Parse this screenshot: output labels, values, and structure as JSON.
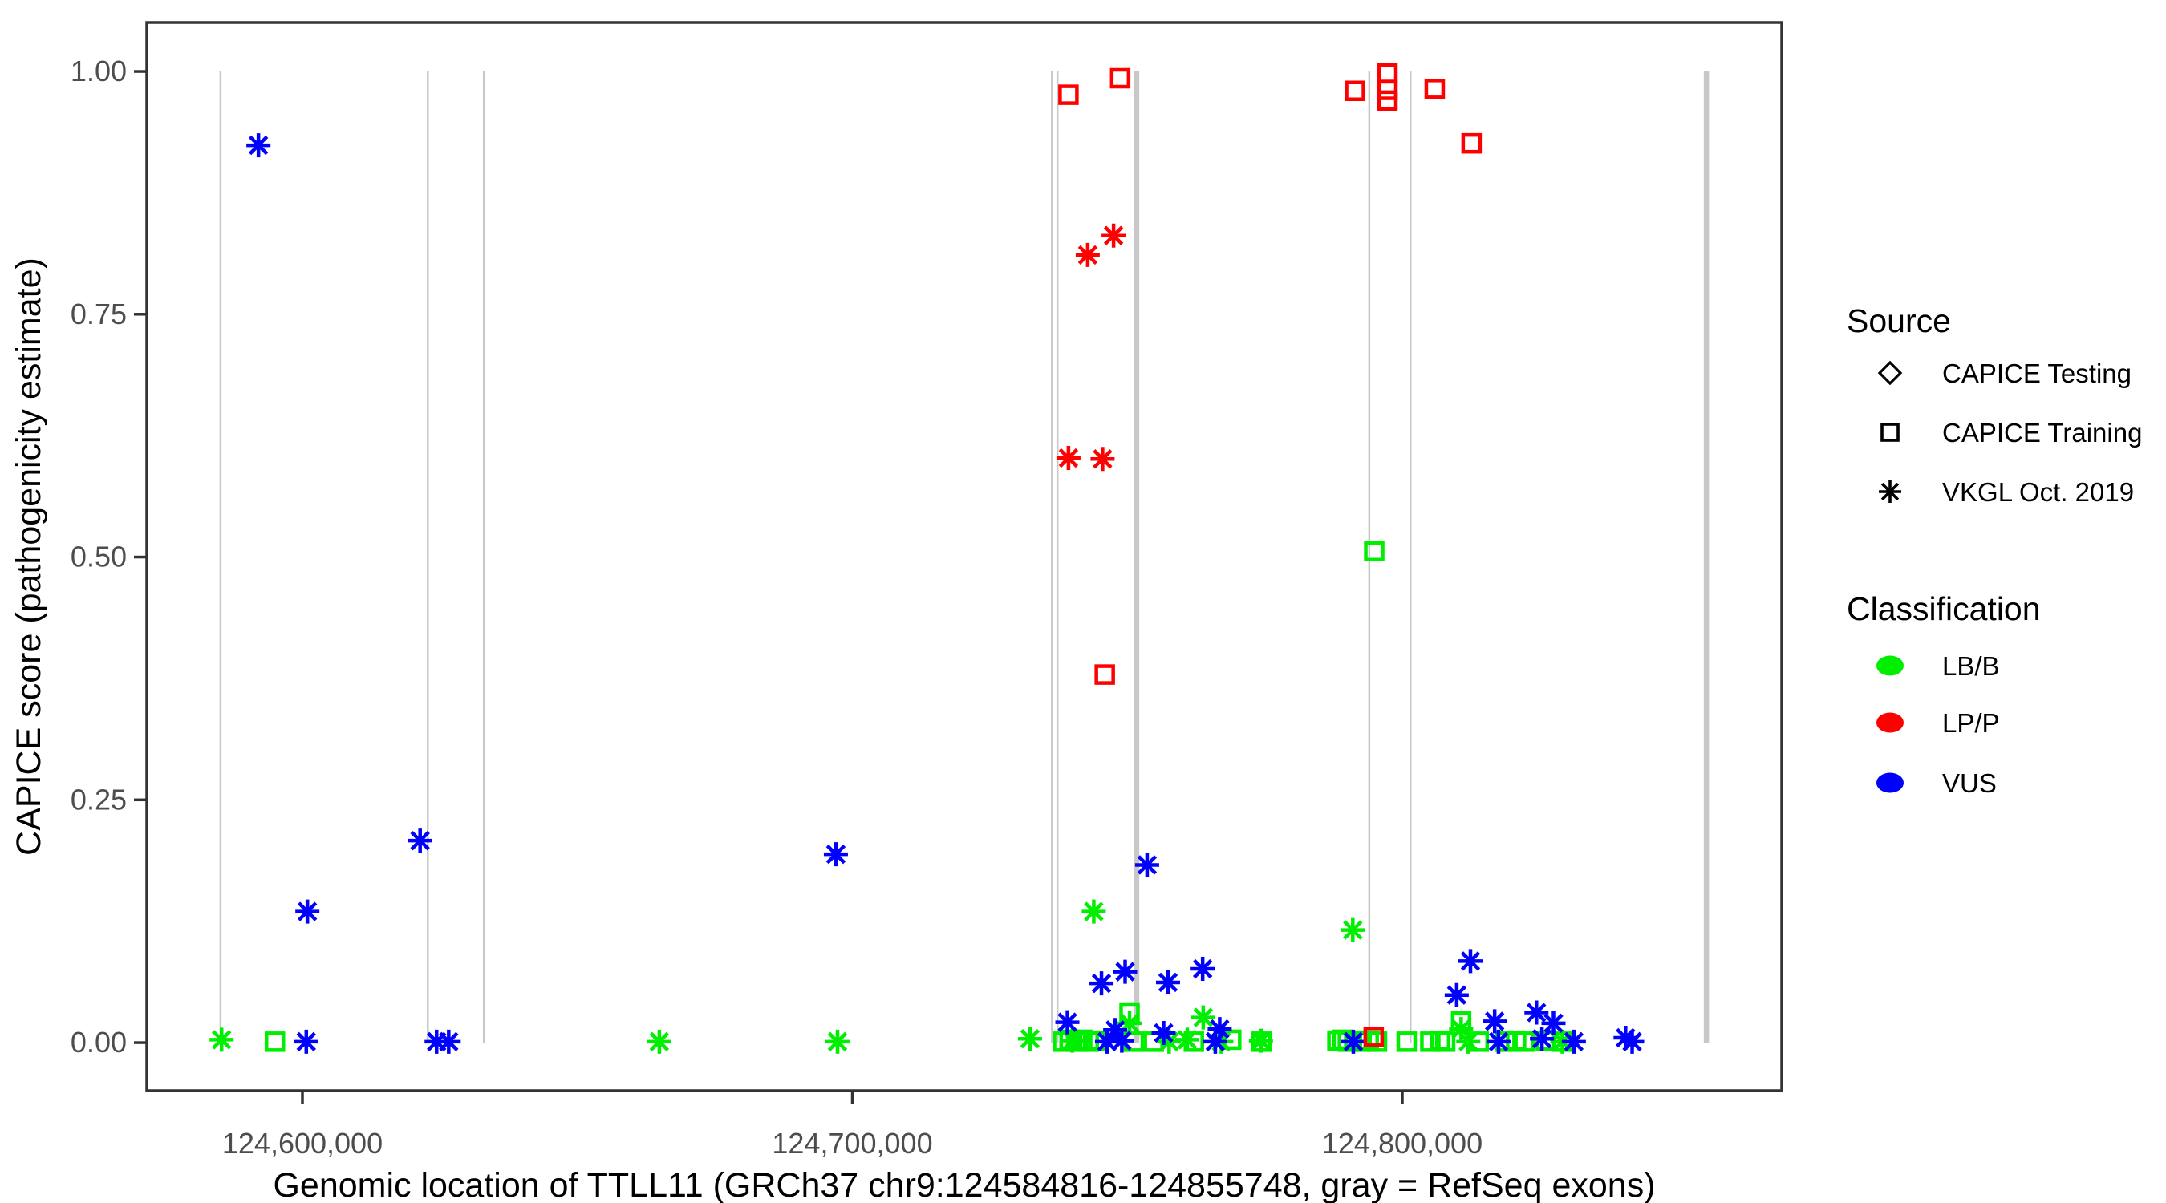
{
  "figure": {
    "x_axis": {
      "title": "Genomic location of TTLL11 (GRCh37 chr9:124584816-124855748, gray = RefSeq exons)",
      "tick_labels": [
        "124,600,000",
        "124,700,000",
        "124,800,000"
      ],
      "tick_values": [
        124600000,
        124700000,
        124800000
      ]
    },
    "y_axis": {
      "title": "CAPICE score (pathogenicity estimate)",
      "tick_labels": [
        "0.00",
        "0.25",
        "0.50",
        "0.75",
        "1.00"
      ],
      "tick_values": [
        0,
        0.25,
        0.5,
        0.75,
        1
      ]
    },
    "legend": {
      "source": {
        "title": "Source",
        "items": [
          {
            "label": "CAPICE Testing",
            "shape": "diamond"
          },
          {
            "label": "CAPICE Training",
            "shape": "square"
          },
          {
            "label": "VKGL Oct. 2019",
            "shape": "asterisk"
          }
        ]
      },
      "classification": {
        "title": "Classification",
        "items": [
          {
            "label": "LB/B",
            "color": "#00EE00"
          },
          {
            "label": "LP/P",
            "color": "#FF0000"
          },
          {
            "label": "VUS",
            "color": "#0000FF"
          }
        ]
      }
    },
    "colors": {
      "lb_b": "#00EE00",
      "lp_p": "#FF0000",
      "vus": "#0000FF",
      "exon_gray": "#C8C8C8",
      "axis_text": "#4d4d4d",
      "axis_line": "#333333",
      "background": "#ffffff"
    }
  },
  "chart_data": {
    "type": "scatter",
    "title": "",
    "xlabel": "Genomic location of TTLL11 (GRCh37 chr9:124584816-124855748, gray = RefSeq exons)",
    "ylabel": "CAPICE score (pathogenicity estimate)",
    "xlim": [
      124571700,
      124869000
    ],
    "ylim": [
      -0.0495,
      1.0504
    ],
    "grid": false,
    "legend_position": "right",
    "exons_note": "gray vertical segments span score 0 to 1 at RefSeq exon genomic positions",
    "exons": [
      {
        "bp": 124585100,
        "thick": false
      },
      {
        "bp": 124622800,
        "thick": false
      },
      {
        "bp": 124633000,
        "thick": false
      },
      {
        "bp": 124736300,
        "thick": false
      },
      {
        "bp": 124737300,
        "thick": false
      },
      {
        "bp": 124751700,
        "thick": true
      },
      {
        "bp": 124794000,
        "thick": false
      },
      {
        "bp": 124801500,
        "thick": false
      },
      {
        "bp": 124855300,
        "thick": true
      }
    ],
    "series": [
      {
        "name": "VKGL Oct. 2019 / LB/B",
        "source": "VKGL Oct. 2019",
        "classification": "LB/B",
        "shape": "asterisk",
        "color": "#00EE00",
        "points": [
          [
            124585300,
            0.003
          ],
          [
            124664900,
            0.001
          ],
          [
            124697300,
            0.001
          ],
          [
            124732300,
            0.004
          ],
          [
            124740000,
            0.002
          ],
          [
            124743900,
            0.135
          ],
          [
            124750400,
            0.02
          ],
          [
            124757600,
            0.001
          ],
          [
            124760900,
            0.003
          ],
          [
            124763800,
            0.026
          ],
          [
            124767100,
            0.001
          ],
          [
            124774300,
            0.002
          ],
          [
            124791000,
            0.116
          ],
          [
            124810700,
            0.014
          ],
          [
            124812000,
            0.001
          ],
          [
            124829100,
            0.001
          ]
        ]
      },
      {
        "name": "CAPICE Training / LB/B",
        "source": "CAPICE Training",
        "classification": "LB/B",
        "shape": "square",
        "color": "#00EE00",
        "points": [
          [
            124595000,
            0.001
          ],
          [
            124738300,
            0.001
          ],
          [
            124739500,
            0.003
          ],
          [
            124740700,
            0.001
          ],
          [
            124741800,
            0.003
          ],
          [
            124743000,
            0.001
          ],
          [
            124744200,
            0.002
          ],
          [
            124750400,
            0.031
          ],
          [
            124751200,
            0.001
          ],
          [
            124754800,
            0.001
          ],
          [
            124762100,
            0.001
          ],
          [
            124768900,
            0.003
          ],
          [
            124774400,
            0.001
          ],
          [
            124788200,
            0.002
          ],
          [
            124789100,
            0.003
          ],
          [
            124790100,
            0.001
          ],
          [
            124792600,
            0.001
          ],
          [
            124793900,
            0.002
          ],
          [
            124794900,
            0.506
          ],
          [
            124795400,
            0.001
          ],
          [
            124800800,
            0.001
          ],
          [
            124805100,
            0.001
          ],
          [
            124806900,
            0.002
          ],
          [
            124807800,
            0.001
          ],
          [
            124810700,
            0.022
          ],
          [
            124813900,
            0.001
          ],
          [
            124818800,
            0.001
          ],
          [
            124820700,
            0.002
          ],
          [
            124822200,
            0.001
          ],
          [
            124826100,
            0.002
          ],
          [
            124829100,
            0.001
          ]
        ]
      },
      {
        "name": "VKGL Oct. 2019 / VUS",
        "source": "VKGL Oct. 2019",
        "classification": "VUS",
        "shape": "asterisk",
        "color": "#0000FF",
        "points": [
          [
            124592000,
            0.924
          ],
          [
            124600700,
            0.001
          ],
          [
            124600900,
            0.135
          ],
          [
            124621400,
            0.208
          ],
          [
            124624400,
            0.001
          ],
          [
            124626600,
            0.001
          ],
          [
            124697000,
            0.194
          ],
          [
            124739100,
            0.021
          ],
          [
            124745300,
            0.061
          ],
          [
            124746300,
            0.001
          ],
          [
            124747800,
            0.013
          ],
          [
            124749000,
            0.002
          ],
          [
            124749600,
            0.073
          ],
          [
            124753600,
            0.183
          ],
          [
            124756600,
            0.01
          ],
          [
            124757400,
            0.062
          ],
          [
            124763700,
            0.076
          ],
          [
            124766000,
            0.001
          ],
          [
            124766800,
            0.014
          ],
          [
            124791100,
            0.001
          ],
          [
            124809900,
            0.049
          ],
          [
            124812400,
            0.084
          ],
          [
            124816800,
            0.022
          ],
          [
            124817500,
            0.001
          ],
          [
            124824400,
            0.031
          ],
          [
            124825400,
            0.004
          ],
          [
            124827500,
            0.02
          ],
          [
            124831200,
            0.001
          ],
          [
            124840600,
            0.005
          ],
          [
            124841800,
            0.001
          ]
        ]
      },
      {
        "name": "VKGL Oct. 2019 / LP/P",
        "source": "VKGL Oct. 2019",
        "classification": "LP/P",
        "shape": "asterisk",
        "color": "#FF0000",
        "points": [
          [
            124739300,
            0.602
          ],
          [
            124742800,
            0.811
          ],
          [
            124745500,
            0.601
          ],
          [
            124747500,
            0.831
          ]
        ]
      },
      {
        "name": "CAPICE Training / LP/P",
        "source": "CAPICE Training",
        "classification": "LP/P",
        "shape": "square",
        "color": "#FF0000",
        "points": [
          [
            124739300,
            0.976
          ],
          [
            124745900,
            0.379
          ],
          [
            124748700,
            0.993
          ],
          [
            124791400,
            0.98
          ],
          [
            124794800,
            0.006
          ],
          [
            124797300,
            0.998
          ],
          [
            124797300,
            0.981
          ],
          [
            124797300,
            0.97
          ],
          [
            124805900,
            0.982
          ],
          [
            124812600,
            0.926
          ]
        ]
      }
    ]
  }
}
